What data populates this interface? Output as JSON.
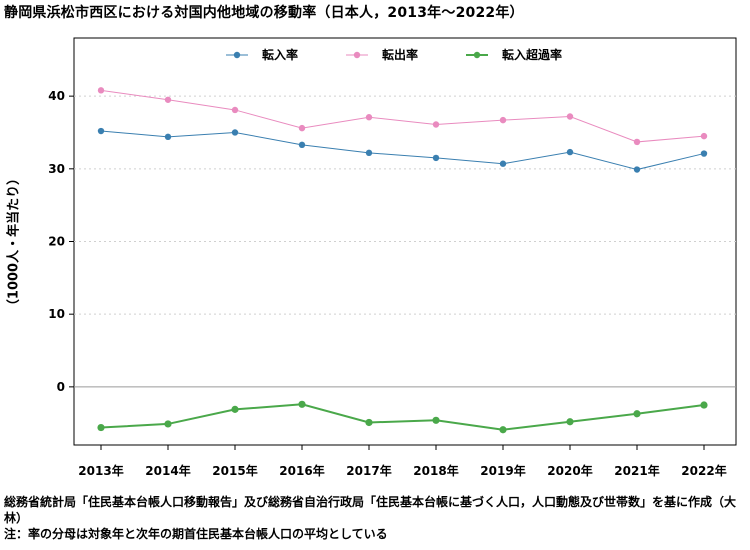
{
  "title": "静岡県浜松市西区における対国内他地域の移動率（日本人，2013年～2022年）",
  "notes": [
    "総務省統計局「住民基本台帳人口移動報告」及び総務省自治行政局「住民基本台帳に基づく人口，人口動態及び世帯数」を基に作成（大林）",
    "注：率の分母は対象年と次年の期首住民基本台帳人口の平均としている"
  ],
  "chart_data": {
    "type": "line",
    "title": "静岡県浜松市西区における対国内他地域の移動率（日本人，2013年～2022年）",
    "ylabel": "（1000人・年当たり）",
    "xlabel": "",
    "categories": [
      "2013年",
      "2014年",
      "2015年",
      "2016年",
      "2017年",
      "2018年",
      "2019年",
      "2020年",
      "2021年",
      "2022年"
    ],
    "yticks": [
      0,
      10,
      20,
      30,
      40
    ],
    "ylim": [
      -8,
      48
    ],
    "grid": "horizontal dotted",
    "legend_position": "top",
    "series": [
      {
        "name": "転入率",
        "color": "#3a7fb0",
        "values": [
          35.2,
          34.4,
          35.0,
          33.3,
          32.2,
          31.5,
          30.7,
          32.3,
          29.9,
          32.1
        ]
      },
      {
        "name": "転出率",
        "color": "#e98bbf",
        "values": [
          40.8,
          39.5,
          38.1,
          35.6,
          37.1,
          36.1,
          36.7,
          37.2,
          33.7,
          34.5
        ]
      },
      {
        "name": "転入超過率",
        "color": "#4aa84a",
        "values": [
          -5.6,
          -5.1,
          -3.1,
          -2.4,
          -4.9,
          -4.6,
          -5.9,
          -4.8,
          -3.7,
          -2.5
        ]
      }
    ]
  }
}
